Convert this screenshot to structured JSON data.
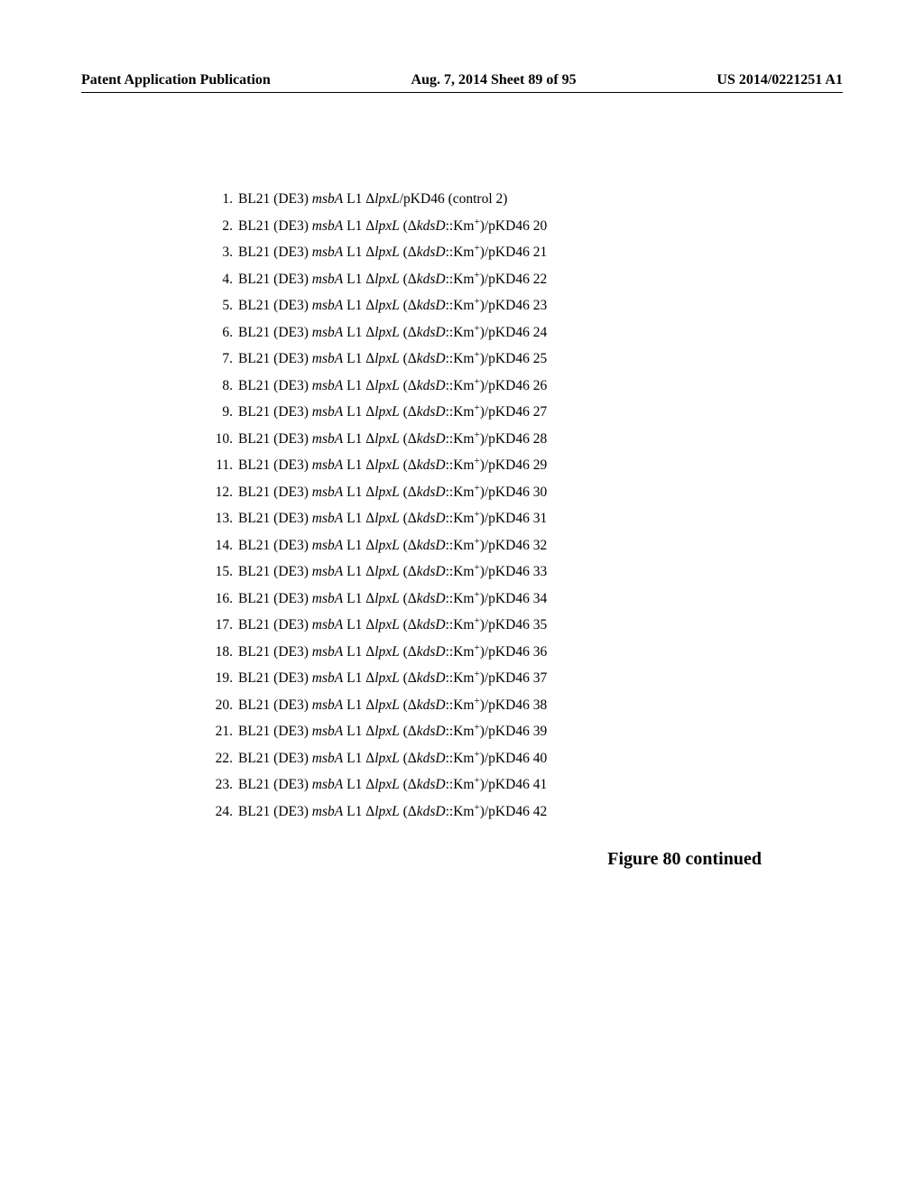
{
  "header": {
    "left": "Patent Application Publication",
    "center": "Aug. 7, 2014  Sheet 89 of 95",
    "right": "US 2014/0221251 A1"
  },
  "figure_caption": "Figure 80 continued",
  "strain_fragments": {
    "prefix": "BL21 (DE3) ",
    "msbA": "msbA",
    "mid1": " L1 Δ",
    "lpxL": "lpxL",
    "control_suffix": "/pKD46 (control 2)",
    "paren_open": " (Δ",
    "kdsD": "kdsD",
    "km_prefix": "::Km",
    "sup_plus": "+",
    "km_suffix": ")/pKD46 "
  },
  "list": [
    {
      "n": "1.",
      "control": true,
      "suffix": ""
    },
    {
      "n": "2.",
      "control": false,
      "suffix": "20"
    },
    {
      "n": "3.",
      "control": false,
      "suffix": "21"
    },
    {
      "n": "4.",
      "control": false,
      "suffix": "22"
    },
    {
      "n": "5.",
      "control": false,
      "suffix": "23"
    },
    {
      "n": "6.",
      "control": false,
      "suffix": "24"
    },
    {
      "n": "7.",
      "control": false,
      "suffix": "25"
    },
    {
      "n": "8.",
      "control": false,
      "suffix": "26"
    },
    {
      "n": "9.",
      "control": false,
      "suffix": "27"
    },
    {
      "n": "10.",
      "control": false,
      "suffix": "28"
    },
    {
      "n": "11.",
      "control": false,
      "suffix": "29"
    },
    {
      "n": "12.",
      "control": false,
      "suffix": "30"
    },
    {
      "n": "13.",
      "control": false,
      "suffix": "31"
    },
    {
      "n": "14.",
      "control": false,
      "suffix": "32"
    },
    {
      "n": "15.",
      "control": false,
      "suffix": "33"
    },
    {
      "n": "16.",
      "control": false,
      "suffix": "34"
    },
    {
      "n": "17.",
      "control": false,
      "suffix": "35"
    },
    {
      "n": "18.",
      "control": false,
      "suffix": "36"
    },
    {
      "n": "19.",
      "control": false,
      "suffix": "37"
    },
    {
      "n": "20.",
      "control": false,
      "suffix": "38"
    },
    {
      "n": "21.",
      "control": false,
      "suffix": "39"
    },
    {
      "n": "22.",
      "control": false,
      "suffix": "40"
    },
    {
      "n": "23.",
      "control": false,
      "suffix": "41"
    },
    {
      "n": "24.",
      "control": false,
      "suffix": "42"
    }
  ]
}
